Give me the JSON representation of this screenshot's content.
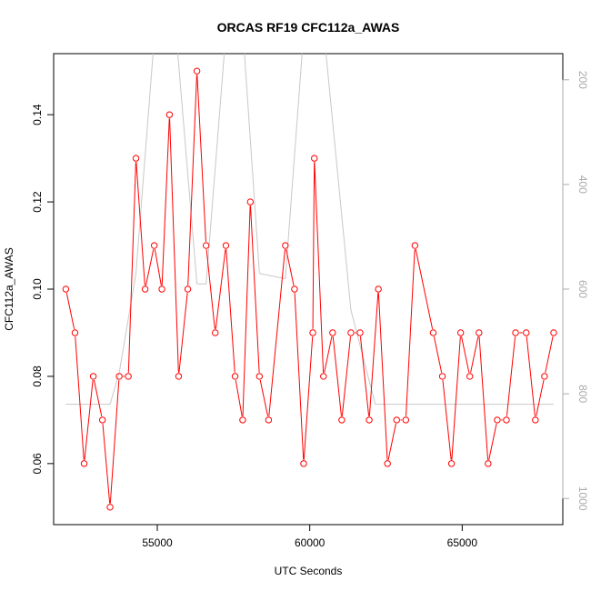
{
  "chart_data": {
    "type": "line",
    "title": "ORCAS RF19 CFC112a_AWAS",
    "xlabel": "UTC Seconds",
    "ylabel": "CFC112a_AWAS",
    "xlim": [
      51600,
      68300
    ],
    "ylim": [
      0.046,
      0.154
    ],
    "x_ticks": [
      55000,
      60000,
      65000
    ],
    "x_tick_labels": [
      "55000",
      "60000",
      "65000"
    ],
    "y_ticks": [
      0.06,
      0.08,
      0.1,
      0.12,
      0.14
    ],
    "y_tick_labels": [
      "0.06",
      "0.08",
      "0.10",
      "0.12",
      "0.14"
    ],
    "y2_axis": {
      "reversed": true,
      "ylim": [
        1050,
        150
      ],
      "ticks": [
        200,
        400,
        600,
        800,
        1000
      ],
      "tick_labels": [
        "200",
        "400",
        "600",
        "800",
        "1000"
      ]
    },
    "series": [
      {
        "color": "#ff0000",
        "marker": "open-circle",
        "x": [
          52000,
          52300,
          52600,
          52900,
          53200,
          53450,
          53750,
          54050,
          54300,
          54600,
          54900,
          55150,
          55400,
          55700,
          56000,
          56300,
          56600,
          56900,
          57250,
          57550,
          57800,
          58050,
          58350,
          58650,
          59200,
          59500,
          59800,
          60100,
          60150,
          60450,
          60750,
          61050,
          61350,
          61650,
          61950,
          62250,
          62550,
          62850,
          63150,
          63450,
          64050,
          64350,
          64650,
          64950,
          65250,
          65550,
          65850,
          66150,
          66450,
          66750,
          67100,
          67400,
          67700,
          68000
        ],
        "values": [
          0.1,
          0.09,
          0.06,
          0.08,
          0.07,
          0.05,
          0.08,
          0.08,
          0.13,
          0.1,
          0.11,
          0.1,
          0.14,
          0.08,
          0.1,
          0.15,
          0.11,
          0.09,
          0.11,
          0.08,
          0.07,
          0.12,
          0.08,
          0.07,
          0.11,
          0.1,
          0.06,
          0.09,
          0.13,
          0.08,
          0.09,
          0.07,
          0.09,
          0.09,
          0.07,
          0.1,
          0.06,
          0.07,
          0.07,
          0.11,
          0.09,
          0.08,
          0.06,
          0.09,
          0.08,
          0.09,
          0.06,
          0.07,
          0.07,
          0.09,
          0.09,
          0.07,
          0.08,
          0.09
        ]
      },
      {
        "color": "#c8c8c8",
        "axis": "right",
        "x": [
          52000,
          53450,
          53750,
          54300,
          54900,
          55600,
          56300,
          56600,
          57250,
          57800,
          58350,
          59200,
          59800,
          60450,
          61350,
          62150,
          63150,
          64000,
          65000,
          66000,
          68000
        ],
        "values": [
          820,
          820,
          760,
          570,
          120,
          100,
          590,
          590,
          110,
          100,
          570,
          580,
          110,
          100,
          640,
          820,
          820,
          820,
          820,
          820,
          820
        ]
      }
    ]
  }
}
